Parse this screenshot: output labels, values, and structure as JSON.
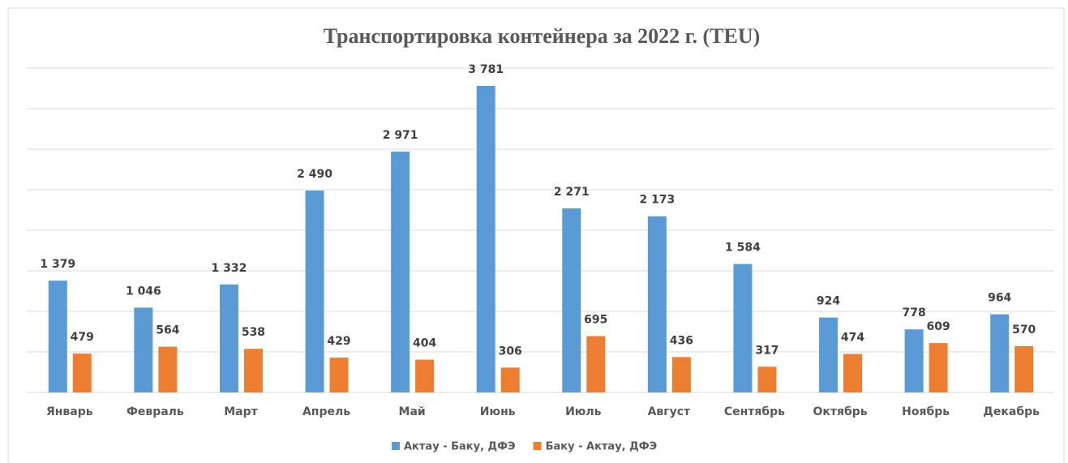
{
  "chart_data": {
    "type": "bar",
    "title": "Транспортировка контейнера за 2022 г. (TEU)",
    "categories": [
      "Январь",
      "Февраль",
      "Март",
      "Апрель",
      "Май",
      "Июнь",
      "Июль",
      "Август",
      "Сентябрь",
      "Октябрь",
      "Ноябрь",
      "Декабрь"
    ],
    "series": [
      {
        "name": "Актау - Баку, ДФЭ",
        "color": "#5b9bd5",
        "values": [
          1379,
          1046,
          1332,
          2490,
          2971,
          3781,
          2271,
          2173,
          1584,
          924,
          778,
          964
        ],
        "value_labels": [
          "1 379",
          "1 046",
          "1 332",
          "2 490",
          "2 971",
          "3 781",
          "2 271",
          "2 173",
          "1 584",
          "924",
          "778",
          "964"
        ]
      },
      {
        "name": "Баку - Актау, ДФЭ",
        "color": "#ed7d31",
        "values": [
          479,
          564,
          538,
          429,
          404,
          306,
          695,
          436,
          317,
          474,
          609,
          570
        ]
      }
    ],
    "ylim": [
      0,
      4000
    ],
    "yticks": [
      0,
      500,
      1000,
      1500,
      2000,
      2500,
      3000,
      3500,
      4000
    ],
    "grid": true,
    "legend": "bottom"
  }
}
